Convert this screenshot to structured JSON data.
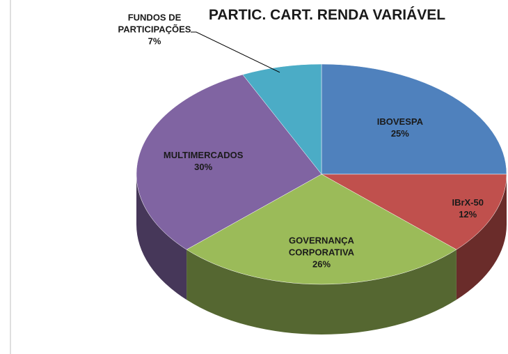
{
  "chart_data": {
    "type": "pie",
    "title": "PARTIC. CART. RENDA VARIÁVEL",
    "categories": [
      "IBOVESPA",
      "IBrX-50",
      "GOVERNANÇA CORPORATIVA",
      "MULTIMERCADOS",
      "FUNDOS DE PARTICIPAÇÕES"
    ],
    "values": [
      25,
      12,
      26,
      30,
      7
    ],
    "value_labels": [
      "25%",
      "12%",
      "26%",
      "30%",
      "7%"
    ],
    "colors": [
      "#4f81bd",
      "#c0504d",
      "#9bbb59",
      "#8064a2",
      "#4bacc6"
    ]
  }
}
